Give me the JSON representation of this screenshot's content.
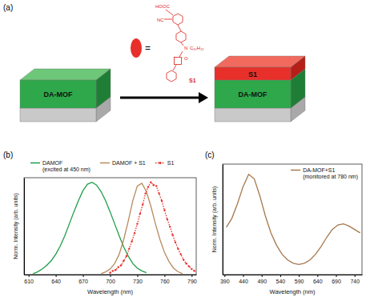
{
  "chart_data": [
    {
      "type": "line",
      "title": "(b)",
      "x_label": "Wavelength (nm)",
      "y_label": "Norm. Intensity (arb. units)",
      "xlim": [
        605,
        795
      ],
      "ylim": [
        0,
        1.05
      ],
      "xticks": [
        610,
        640,
        670,
        700,
        730,
        760,
        790
      ],
      "tick_labels": "x",
      "legend": "top",
      "series": [
        {
          "name": "DAMOF (excited at 450 nm)",
          "color": "#1e9e4a",
          "line_style": "solid",
          "x": [
            615,
            620,
            625,
            630,
            635,
            640,
            645,
            650,
            655,
            660,
            665,
            670,
            675,
            680,
            685,
            690,
            695,
            700,
            705,
            710,
            715,
            720,
            725,
            730,
            735,
            740
          ],
          "values": [
            0.01,
            0.03,
            0.06,
            0.1,
            0.15,
            0.22,
            0.31,
            0.42,
            0.55,
            0.68,
            0.8,
            0.91,
            0.98,
            1.0,
            0.97,
            0.9,
            0.8,
            0.68,
            0.55,
            0.42,
            0.3,
            0.2,
            0.12,
            0.07,
            0.04,
            0.02
          ]
        },
        {
          "name": "DAMOF + S1",
          "color": "#b88a5c",
          "line_style": "solid",
          "x": [
            690,
            695,
            700,
            705,
            710,
            715,
            720,
            725,
            730,
            735,
            740,
            745,
            750,
            755,
            760,
            765,
            770,
            775,
            780
          ],
          "values": [
            0.01,
            0.03,
            0.06,
            0.12,
            0.22,
            0.38,
            0.58,
            0.8,
            0.96,
            0.99,
            0.9,
            0.74,
            0.55,
            0.38,
            0.24,
            0.14,
            0.07,
            0.03,
            0.01
          ]
        },
        {
          "name": "S1",
          "color": "#e8302a",
          "line_style": "dotted",
          "marker": "circle",
          "x": [
            700,
            703,
            706,
            709,
            712,
            715,
            718,
            721,
            724,
            727,
            730,
            733,
            736,
            739,
            742,
            745,
            748,
            751,
            754,
            757,
            760,
            763,
            766,
            769,
            772,
            775,
            778,
            781,
            784,
            787,
            790,
            793
          ],
          "values": [
            0.02,
            0.04,
            0.05,
            0.08,
            0.1,
            0.15,
            0.2,
            0.28,
            0.36,
            0.45,
            0.55,
            0.66,
            0.76,
            0.88,
            0.95,
            1.0,
            0.97,
            0.96,
            0.88,
            0.8,
            0.7,
            0.6,
            0.52,
            0.43,
            0.35,
            0.28,
            0.22,
            0.16,
            0.12,
            0.09,
            0.06,
            0.04
          ]
        }
      ]
    },
    {
      "type": "line",
      "title": "(c)",
      "x_label": "Wavelength (nm)",
      "y_label": "Norm. Intensity (arb. units)",
      "xlim": [
        385,
        760
      ],
      "ylim": [
        0.1,
        1.08
      ],
      "xticks": [
        390,
        440,
        490,
        540,
        590,
        640,
        690,
        740
      ],
      "tick_labels": "x",
      "legend": "upper right",
      "series": [
        {
          "name": "DA-MOF+S1 (monitored at 780 nm)",
          "color": "#a6784c",
          "line_style": "solid",
          "x": [
            395,
            410,
            425,
            440,
            455,
            470,
            485,
            500,
            515,
            530,
            545,
            560,
            575,
            590,
            605,
            620,
            635,
            650,
            665,
            680,
            695,
            710,
            725,
            740,
            755
          ],
          "values": [
            0.52,
            0.6,
            0.73,
            0.88,
            0.99,
            0.95,
            0.8,
            0.62,
            0.47,
            0.36,
            0.28,
            0.23,
            0.2,
            0.19,
            0.2,
            0.23,
            0.28,
            0.35,
            0.43,
            0.5,
            0.54,
            0.55,
            0.53,
            0.5,
            0.47
          ]
        }
      ]
    }
  ],
  "diagram": {
    "panel": "(a)",
    "equals": "=",
    "molecule_labels": [
      "HOOC",
      "NC",
      "N",
      "C₁₀H₂₁",
      "O",
      "S1"
    ],
    "left_stack": [
      "DA-MOF"
    ],
    "right_stack": [
      "S1",
      "DA-MOF"
    ]
  }
}
